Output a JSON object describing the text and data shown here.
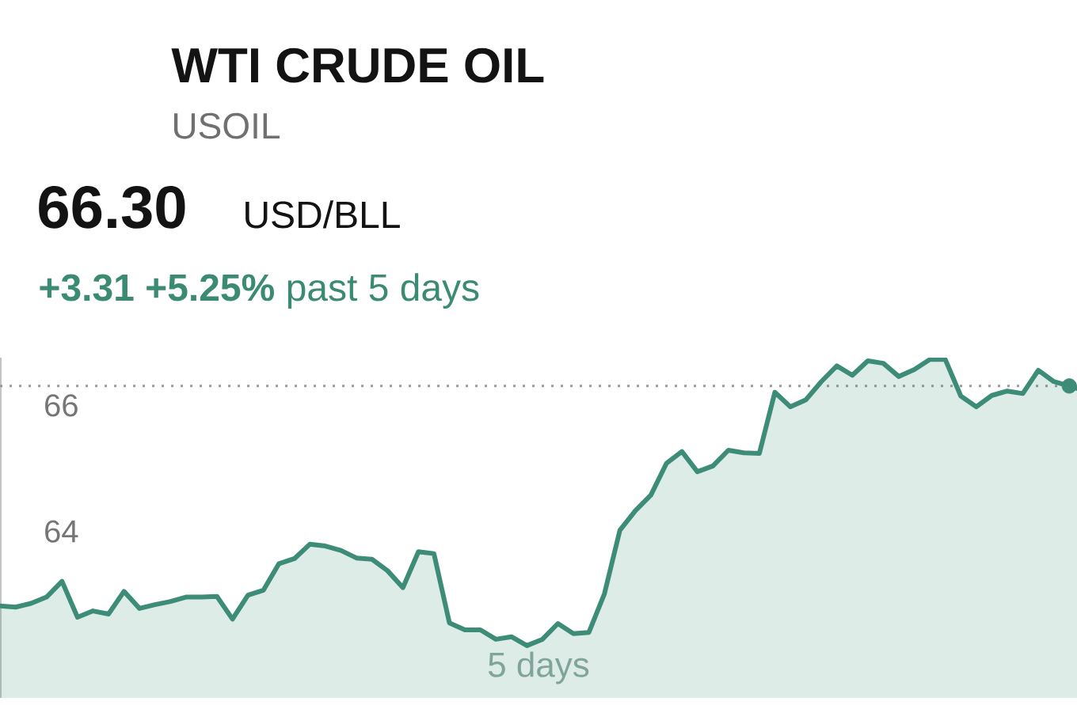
{
  "chart_data": {
    "type": "area",
    "title": "WTI CRUDE OIL",
    "subtitle": "USOIL",
    "xlabel": "5 days",
    "annotations": [
      "66.30",
      "USD/BLL",
      "**+3.31 +5.25%** past 5 days"
    ],
    "categories": [
      null,
      null,
      null,
      null,
      null,
      null,
      null,
      null,
      null,
      null,
      null,
      null,
      null,
      null,
      null,
      null,
      null,
      null,
      null,
      null,
      null,
      null,
      null,
      null,
      null,
      null,
      null,
      null,
      null,
      null,
      null,
      null,
      null,
      null,
      null,
      null,
      null,
      null,
      null,
      null,
      null,
      null,
      null,
      null,
      null,
      null,
      null,
      null,
      null,
      null,
      null,
      null,
      null,
      null,
      null,
      null,
      null,
      null,
      null,
      null,
      null,
      null,
      null,
      null,
      null,
      null,
      null,
      null,
      null,
      null
    ],
    "ylim": [
      61.35,
      66.75
    ],
    "yticks": [
      64,
      66
    ],
    "tick_labels": "y",
    "ref_lines": [
      {
        "axis": "y",
        "value": 66.3,
        "color": "#9a9a9a",
        "line_style": "dotted"
      }
    ],
    "series": [
      {
        "color": "#3d8c78",
        "values": [
          62.81,
          62.79,
          62.85,
          62.95,
          63.2,
          62.63,
          62.73,
          62.68,
          63.04,
          62.77,
          62.83,
          62.88,
          62.95,
          62.95,
          62.96,
          62.6,
          62.98,
          63.06,
          63.48,
          63.56,
          63.79,
          63.76,
          63.69,
          63.57,
          63.55,
          63.37,
          63.1,
          63.67,
          63.64,
          62.54,
          62.43,
          62.43,
          62.28,
          62.32,
          62.18,
          62.28,
          62.53,
          62.37,
          62.39,
          63.0,
          64.01,
          64.32,
          64.57,
          65.07,
          65.26,
          64.94,
          65.03,
          65.28,
          65.24,
          65.23,
          66.2,
          65.97,
          66.08,
          66.37,
          66.62,
          66.47,
          66.7,
          66.66,
          66.45,
          66.56,
          66.72,
          66.72,
          66.14,
          65.97,
          66.15,
          66.22,
          66.18,
          66.55,
          66.37,
          66.3
        ]
      },
      {
        "type": "scatter",
        "color": "#3d8c78",
        "marker": "circle",
        "values": [
          null,
          null,
          null,
          null,
          null,
          null,
          null,
          null,
          null,
          null,
          null,
          null,
          null,
          null,
          null,
          null,
          null,
          null,
          null,
          null,
          null,
          null,
          null,
          null,
          null,
          null,
          null,
          null,
          null,
          null,
          null,
          null,
          null,
          null,
          null,
          null,
          null,
          null,
          null,
          null,
          null,
          null,
          null,
          null,
          null,
          null,
          null,
          null,
          null,
          null,
          null,
          null,
          null,
          null,
          null,
          null,
          null,
          null,
          null,
          null,
          null,
          null,
          null,
          null,
          null,
          null,
          null,
          null,
          null,
          66.3
        ]
      }
    ]
  }
}
